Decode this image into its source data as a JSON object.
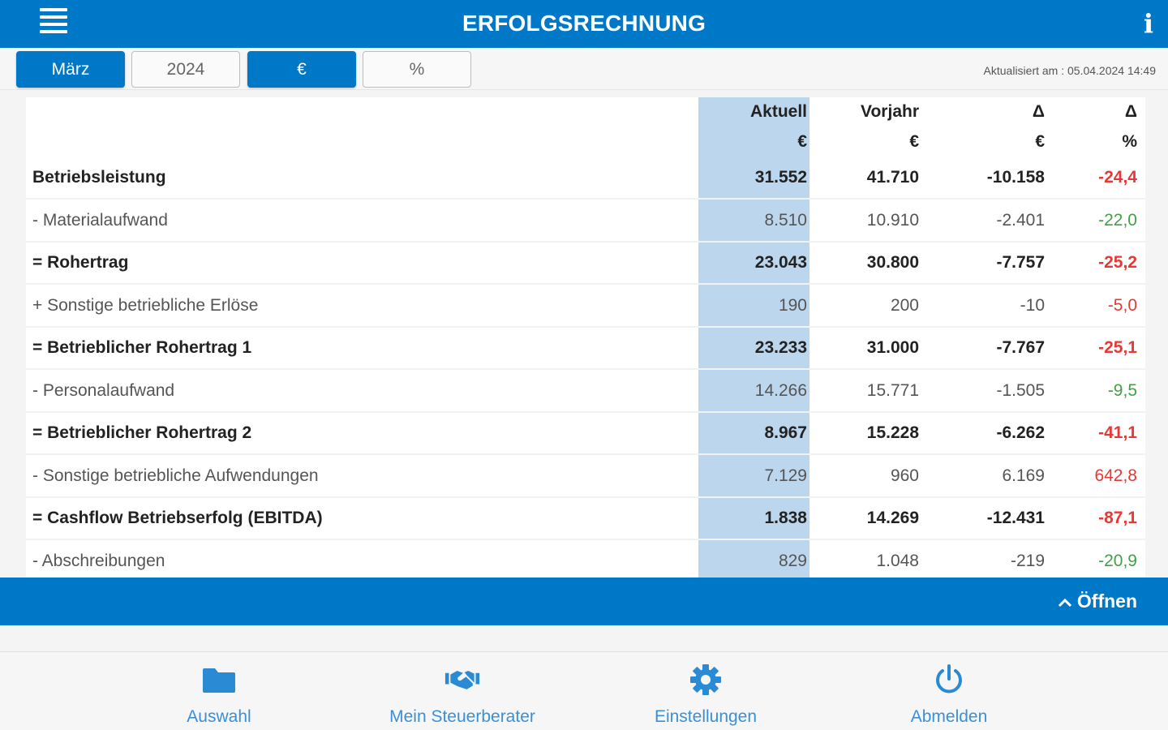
{
  "appbar": {
    "title": "ERFOLGSRECHNUNG",
    "menu_icon": "hamburger-menu-icon",
    "info_icon": "info-icon",
    "info_glyph": "i"
  },
  "filters": {
    "month": "März",
    "year": "2024",
    "currency": "€",
    "percent": "%",
    "updated": "Aktualisiert am : 05.04.2024 14:49"
  },
  "table": {
    "headers": {
      "aktuell": "Aktuell",
      "vorjahr": "Vorjahr",
      "delta": "Δ",
      "delta_pct": "Δ"
    },
    "units": {
      "aktuell": "€",
      "vorjahr": "€",
      "delta": "€",
      "delta_pct": "%"
    },
    "rows": [
      {
        "label": "Betriebsleistung",
        "aktuell": "31.552",
        "vorjahr": "41.710",
        "delta": "-10.158",
        "delta_pct": "-24,4"
      },
      {
        "label": "- Materialaufwand",
        "aktuell": "8.510",
        "vorjahr": "10.910",
        "delta": "-2.401",
        "delta_pct": "-22,0"
      },
      {
        "label": "= Rohertrag",
        "aktuell": "23.043",
        "vorjahr": "30.800",
        "delta": "-7.757",
        "delta_pct": "-25,2"
      },
      {
        "label": "+ Sonstige betriebliche Erlöse",
        "aktuell": "190",
        "vorjahr": "200",
        "delta": "-10",
        "delta_pct": "-5,0"
      },
      {
        "label": "= Betrieblicher Rohertrag 1",
        "aktuell": "23.233",
        "vorjahr": "31.000",
        "delta": "-7.767",
        "delta_pct": "-25,1"
      },
      {
        "label": "- Personalaufwand",
        "aktuell": "14.266",
        "vorjahr": "15.771",
        "delta": "-1.505",
        "delta_pct": "-9,5"
      },
      {
        "label": "= Betrieblicher Rohertrag 2",
        "aktuell": "8.967",
        "vorjahr": "15.228",
        "delta": "-6.262",
        "delta_pct": "-41,1"
      },
      {
        "label": "- Sonstige betriebliche Aufwendungen",
        "aktuell": "7.129",
        "vorjahr": "960",
        "delta": "6.169",
        "delta_pct": "642,8"
      },
      {
        "label": "= Cashflow Betriebserfolg (EBITDA)",
        "aktuell": "1.838",
        "vorjahr": "14.269",
        "delta": "-12.431",
        "delta_pct": "-87,1"
      },
      {
        "label": "- Abschreibungen",
        "aktuell": "829",
        "vorjahr": "1.048",
        "delta": "-219",
        "delta_pct": "-20,9"
      }
    ]
  },
  "open_bar": {
    "label": "Öffnen",
    "icon": "chevron-up-icon"
  },
  "bottom_nav": {
    "items": [
      {
        "label": "Auswahl",
        "icon": "folder-icon"
      },
      {
        "label": "Mein Steuerberater",
        "icon": "handshake-icon"
      },
      {
        "label": "Einstellungen",
        "icon": "gear-icon"
      },
      {
        "label": "Abmelden",
        "icon": "power-icon"
      }
    ]
  },
  "colors": {
    "primary": "#0078c8",
    "highlight_column": "#bcd6ed",
    "negative": "#e53935",
    "positive": "#43a047",
    "nav_text": "#3a90d6"
  }
}
